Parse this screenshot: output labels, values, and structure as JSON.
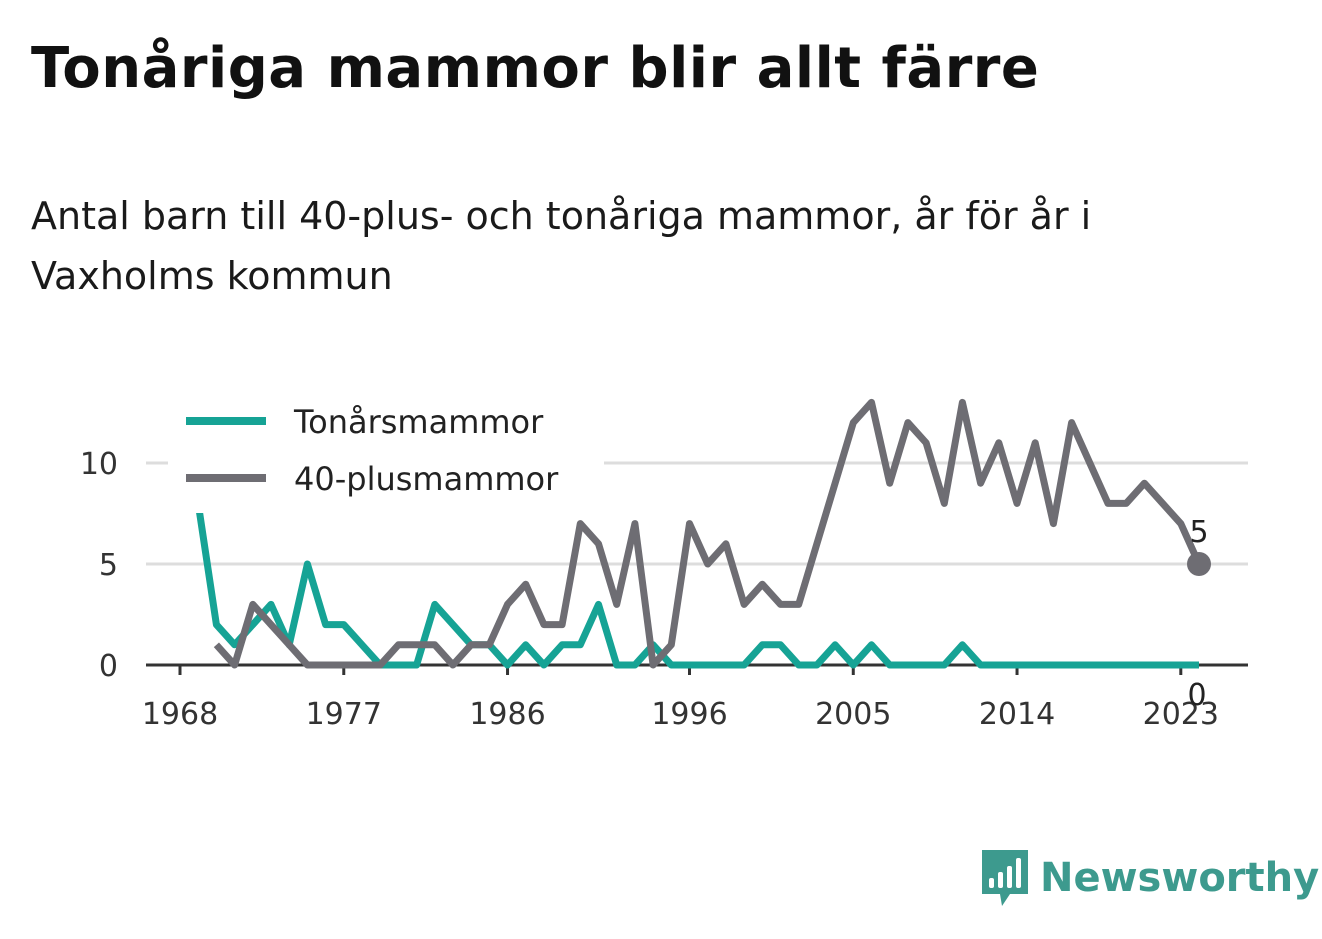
{
  "title": "Tonåriga mammor blir allt färre",
  "subtitle": "Antal barn till 40-plus- och tonåriga mammor, år för år i Vaxholms kommun",
  "brand": {
    "name": "Newsworthy",
    "icon": "newsworthy-logo-icon"
  },
  "colors": {
    "teen": "#16a395",
    "plus40": "#6e6d73",
    "grid": "#dddddd",
    "axis": "#333333"
  },
  "chart_data": {
    "type": "line",
    "legend_position": "top-left",
    "grid": true,
    "x_ticks": [
      1968,
      1977,
      1986,
      1996,
      2005,
      2014,
      2023
    ],
    "y_ticks": [
      0,
      5,
      10
    ],
    "ylim": [
      0,
      13
    ],
    "xlim": [
      1968,
      2024
    ],
    "series": [
      {
        "name": "Tonårsmammor",
        "color": "#16a395",
        "end_label": "0",
        "x": [
          1969,
          1970,
          1971,
          1972,
          1973,
          1974,
          1975,
          1976,
          1977,
          1978,
          1979,
          1980,
          1981,
          1982,
          1983,
          1984,
          1985,
          1986,
          1987,
          1988,
          1989,
          1990,
          1991,
          1992,
          1993,
          1994,
          1995,
          1996,
          1997,
          1998,
          1999,
          2000,
          2001,
          2002,
          2003,
          2004,
          2005,
          2006,
          2007,
          2008,
          2009,
          2010,
          2011,
          2012,
          2013,
          2014,
          2015,
          2016,
          2017,
          2018,
          2019,
          2020,
          2021,
          2022,
          2023,
          2024
        ],
        "values": [
          8,
          2,
          1,
          2,
          3,
          1,
          5,
          2,
          2,
          1,
          0,
          0,
          0,
          3,
          2,
          1,
          1,
          0,
          1,
          0,
          1,
          1,
          3,
          0,
          0,
          1,
          0,
          0,
          0,
          0,
          0,
          1,
          1,
          0,
          0,
          1,
          0,
          1,
          0,
          0,
          0,
          0,
          1,
          0,
          0,
          0,
          0,
          0,
          0,
          0,
          0,
          0,
          0,
          0,
          0,
          0
        ]
      },
      {
        "name": "40-plusmammor",
        "color": "#6e6d73",
        "end_label": "5",
        "x": [
          1970,
          1971,
          1972,
          1973,
          1974,
          1975,
          1976,
          1977,
          1978,
          1979,
          1980,
          1981,
          1982,
          1983,
          1984,
          1985,
          1986,
          1987,
          1988,
          1989,
          1990,
          1991,
          1992,
          1993,
          1994,
          1995,
          1996,
          1997,
          1998,
          1999,
          2000,
          2001,
          2002,
          2003,
          2004,
          2005,
          2006,
          2007,
          2008,
          2009,
          2010,
          2011,
          2012,
          2013,
          2014,
          2015,
          2016,
          2017,
          2018,
          2019,
          2020,
          2021,
          2022,
          2023,
          2024
        ],
        "values": [
          1,
          0,
          3,
          2,
          1,
          0,
          0,
          0,
          0,
          0,
          1,
          1,
          1,
          0,
          1,
          1,
          3,
          4,
          2,
          2,
          7,
          6,
          3,
          7,
          0,
          1,
          7,
          5,
          6,
          3,
          4,
          3,
          3,
          6,
          9,
          12,
          13,
          9,
          12,
          11,
          8,
          13,
          9,
          11,
          8,
          11,
          7,
          12,
          10,
          8,
          8,
          9,
          8,
          7,
          5
        ]
      }
    ]
  }
}
